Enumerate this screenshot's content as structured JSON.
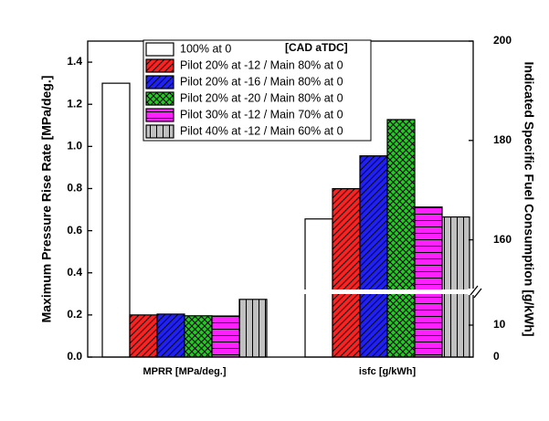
{
  "chart_data": {
    "type": "bar",
    "y_label": "Maximum Pressure Rise Rate [MPa/deg.]",
    "y2_label": "Indicated Specific Fuel Consumption [g/kWh]",
    "categories": [
      "MPRR [MPa/deg.]",
      "isfc [g/kWh]"
    ],
    "category_axes": [
      "y",
      "y2"
    ],
    "ylim": [
      0,
      1.5
    ],
    "yticks": [
      {
        "value": 0,
        "label": "0.0"
      },
      0.2,
      0.4,
      0.6,
      0.8,
      {
        "value": 1,
        "label": "1.0"
      },
      1.2,
      1.4
    ],
    "y2lim": [
      0,
      200
    ],
    "y2break": [
      20,
      150
    ],
    "y2ticks": [
      0,
      10,
      160,
      180,
      200
    ],
    "legend_title": "[CAD aTDC]",
    "legend": "top-left",
    "series": [
      {
        "name": "100% at 0",
        "color": "#ffffff",
        "hatch": "none",
        "values": [
          1.3,
          164.2
        ]
      },
      {
        "name": "Pilot 20% at -12 / Main 80% at 0",
        "color": "#ff2020",
        "hatch": "diagonal",
        "values": [
          0.2,
          170.3
        ]
      },
      {
        "name": "Pilot 20% at -16 / Main 80% at 0",
        "color": "#2020ff",
        "hatch": "diagonal",
        "values": [
          0.204,
          176.9
        ]
      },
      {
        "name": "Pilot 20% at -20 / Main 80% at 0",
        "color": "#22cc22",
        "hatch": "crosshatch",
        "values": [
          0.196,
          184.2
        ]
      },
      {
        "name": "Pilot 30% at -12 / Main 70% at 0",
        "color": "#ff20ff",
        "hatch": "horizontal",
        "values": [
          0.195,
          166.6
        ]
      },
      {
        "name": "Pilot 40% at -12 / Main 60% at 0",
        "color": "#c0c0c0",
        "hatch": "vertical",
        "values": [
          0.274,
          164.6
        ]
      }
    ]
  }
}
